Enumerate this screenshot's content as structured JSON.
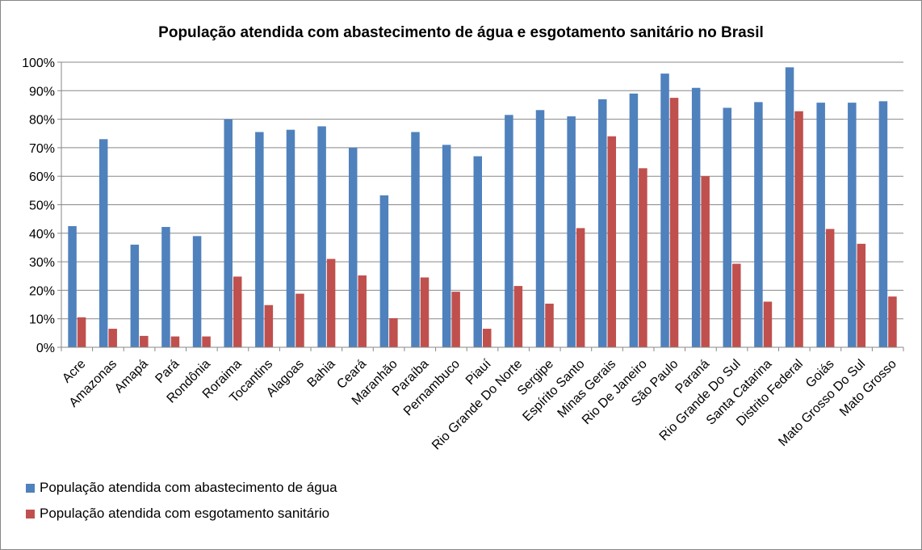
{
  "chart_data": {
    "type": "bar",
    "title": "População atendida com abastecimento de água e esgotamento sanitário no Brasil",
    "xlabel": "",
    "ylabel": "",
    "ylim": [
      0,
      100
    ],
    "yticks": [
      "0%",
      "10%",
      "20%",
      "30%",
      "40%",
      "50%",
      "60%",
      "70%",
      "80%",
      "90%",
      "100%"
    ],
    "grid": true,
    "legend_position": "bottom-left",
    "categories": [
      "Acre",
      "Amazonas",
      "Amapá",
      "Pará",
      "Rondônia",
      "Roraima",
      "Tocantins",
      "Alagoas",
      "Bahia",
      "Ceará",
      "Maranhão",
      "Paraíba",
      "Pernambuco",
      "Piauí",
      "Rio Grande Do Norte",
      "Sergipe",
      "Espírito Santo",
      "Minas Gerais",
      "Rio De Janeiro",
      "São Paulo",
      "Paraná",
      "Rio Grande Do Sul",
      "Santa Catarina",
      "Distrito Federal",
      "Goiás",
      "Mato Grosso Do Sul",
      "Mato Grosso"
    ],
    "series": [
      {
        "name": "População atendida com abastecimento de água",
        "color": "#4f81bd",
        "values": [
          42.5,
          73,
          36,
          42.2,
          39,
          80,
          75.5,
          76.3,
          77.5,
          70,
          53.3,
          75.5,
          71,
          67,
          81.5,
          83.2,
          81,
          87,
          89,
          96,
          91,
          84,
          86,
          98.2,
          85.8,
          85.8,
          86.3
        ]
      },
      {
        "name": "População atendida com esgotamento sanitário",
        "color": "#c0504d",
        "values": [
          10.5,
          6.5,
          4,
          3.8,
          3.8,
          24.8,
          14.8,
          18.8,
          31,
          25.2,
          10.2,
          24.5,
          19.5,
          6.5,
          21.5,
          15.3,
          41.8,
          74,
          62.8,
          87.5,
          60,
          29.3,
          16,
          82.8,
          41.5,
          36.3,
          17.8
        ]
      }
    ]
  }
}
